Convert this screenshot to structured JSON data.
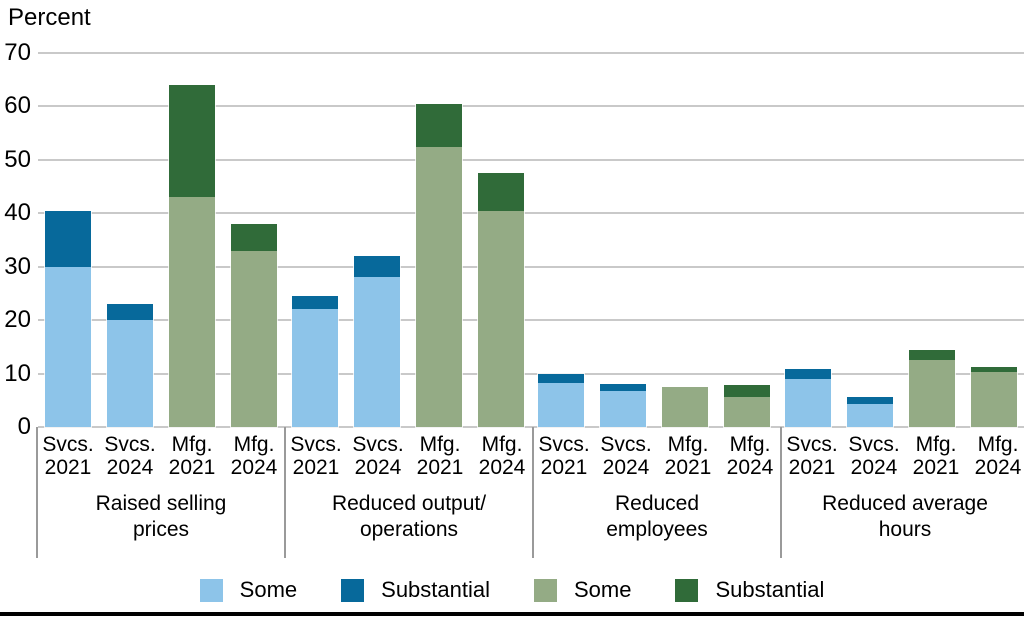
{
  "percent_label": "Percent",
  "chart_data": {
    "type": "bar",
    "stacked": true,
    "title": "",
    "ylabel": "Percent",
    "xlabel": "",
    "ylim": [
      0,
      70
    ],
    "yticks": [
      0,
      10,
      20,
      30,
      40,
      50,
      60,
      70
    ],
    "grid": true,
    "legend_position": "bottom",
    "legend": [
      {
        "label": "Some",
        "color": "#8DC4E9"
      },
      {
        "label": "Substantial",
        "color": "#07699B"
      },
      {
        "label": "Some",
        "color": "#94AB85"
      },
      {
        "label": "Substantial",
        "color": "#306B39"
      }
    ],
    "palettes": {
      "services": {
        "some": "#8DC4E9",
        "substantial": "#07699B"
      },
      "manufacturing": {
        "some": "#94AB85",
        "substantial": "#306B39"
      }
    },
    "groups": [
      {
        "label": [
          "Raised selling",
          "prices"
        ],
        "bars": [
          {
            "tick": [
              "Svcs.",
              "2021"
            ],
            "palette": "services",
            "some": 30,
            "substantial": 10.5
          },
          {
            "tick": [
              "Svcs.",
              "2024"
            ],
            "palette": "services",
            "some": 20,
            "substantial": 3
          },
          {
            "tick": [
              "Mfg.",
              "2021"
            ],
            "palette": "manufacturing",
            "some": 43,
            "substantial": 21
          },
          {
            "tick": [
              "Mfg.",
              "2024"
            ],
            "palette": "manufacturing",
            "some": 33,
            "substantial": 5
          }
        ]
      },
      {
        "label": [
          "Reduced output/",
          "operations"
        ],
        "bars": [
          {
            "tick": [
              "Svcs.",
              "2021"
            ],
            "palette": "services",
            "some": 22,
            "substantial": 2.5
          },
          {
            "tick": [
              "Svcs.",
              "2024"
            ],
            "palette": "services",
            "some": 28,
            "substantial": 4
          },
          {
            "tick": [
              "Mfg.",
              "2021"
            ],
            "palette": "manufacturing",
            "some": 52.5,
            "substantial": 8
          },
          {
            "tick": [
              "Mfg.",
              "2024"
            ],
            "palette": "manufacturing",
            "some": 40.5,
            "substantial": 7
          }
        ]
      },
      {
        "label": [
          "Reduced",
          "employees"
        ],
        "bars": [
          {
            "tick": [
              "Svcs.",
              "2021"
            ],
            "palette": "services",
            "some": 8.3,
            "substantial": 1.7
          },
          {
            "tick": [
              "Svcs.",
              "2024"
            ],
            "palette": "services",
            "some": 6.8,
            "substantial": 1.3
          },
          {
            "tick": [
              "Mfg.",
              "2021"
            ],
            "palette": "manufacturing",
            "some": 7.5,
            "substantial": 0
          },
          {
            "tick": [
              "Mfg.",
              "2024"
            ],
            "palette": "manufacturing",
            "some": 5.7,
            "substantial": 2.1
          }
        ]
      },
      {
        "label": [
          "Reduced average",
          "hours"
        ],
        "bars": [
          {
            "tick": [
              "Svcs.",
              "2021"
            ],
            "palette": "services",
            "some": 9,
            "substantial": 1.8
          },
          {
            "tick": [
              "Svcs.",
              "2024"
            ],
            "palette": "services",
            "some": 4.3,
            "substantial": 1.4
          },
          {
            "tick": [
              "Mfg.",
              "2021"
            ],
            "palette": "manufacturing",
            "some": 12.6,
            "substantial": 1.8
          },
          {
            "tick": [
              "Mfg.",
              "2024"
            ],
            "palette": "manufacturing",
            "some": 10.3,
            "substantial": 0.9
          }
        ]
      }
    ]
  }
}
